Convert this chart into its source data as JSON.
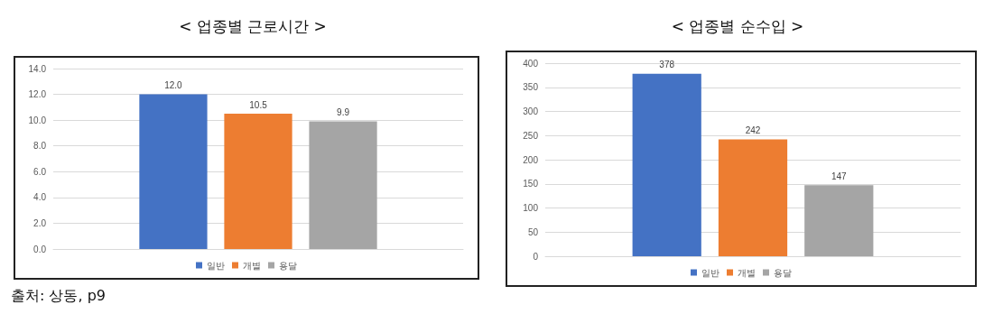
{
  "chart_data": [
    {
      "type": "bar",
      "title": "< 업종별 근로시간 >",
      "categories": [
        null
      ],
      "series": [
        {
          "name": "일반",
          "color": "#4472c4",
          "values": [
            12.0
          ],
          "value_labels": [
            "12.0"
          ]
        },
        {
          "name": "개별",
          "color": "#ed7d31",
          "values": [
            10.5
          ],
          "value_labels": [
            "10.5"
          ]
        },
        {
          "name": "용달",
          "color": "#a5a5a5",
          "values": [
            9.9
          ],
          "value_labels": [
            "9.9"
          ]
        }
      ],
      "ylim": [
        0,
        14
      ],
      "yticks": [
        {
          "value": 0,
          "label": "0.0"
        },
        {
          "value": 2,
          "label": "2.0"
        },
        {
          "value": 4,
          "label": "4.0"
        },
        {
          "value": 6,
          "label": "6.0"
        },
        {
          "value": 8,
          "label": "8.0"
        },
        {
          "value": 10,
          "label": "10.0"
        },
        {
          "value": 12,
          "label": "12.0"
        },
        {
          "value": 14,
          "label": "14.0"
        }
      ],
      "grid": "y",
      "legend": "bottom",
      "annotations": [
        "출처: 상동, p9"
      ]
    },
    {
      "type": "bar",
      "title": "< 업종별 순수입 >",
      "categories": [
        null
      ],
      "series": [
        {
          "name": "일반",
          "color": "#4472c4",
          "values": [
            378
          ],
          "value_labels": [
            "378"
          ]
        },
        {
          "name": "개별",
          "color": "#ed7d31",
          "values": [
            242
          ],
          "value_labels": [
            "242"
          ]
        },
        {
          "name": "용달",
          "color": "#a5a5a5",
          "values": [
            147
          ],
          "value_labels": [
            "147"
          ]
        }
      ],
      "ylim": [
        0,
        400
      ],
      "yticks": [
        0,
        50,
        100,
        150,
        200,
        250,
        300,
        350,
        400
      ],
      "grid": "y",
      "legend": "bottom"
    }
  ]
}
